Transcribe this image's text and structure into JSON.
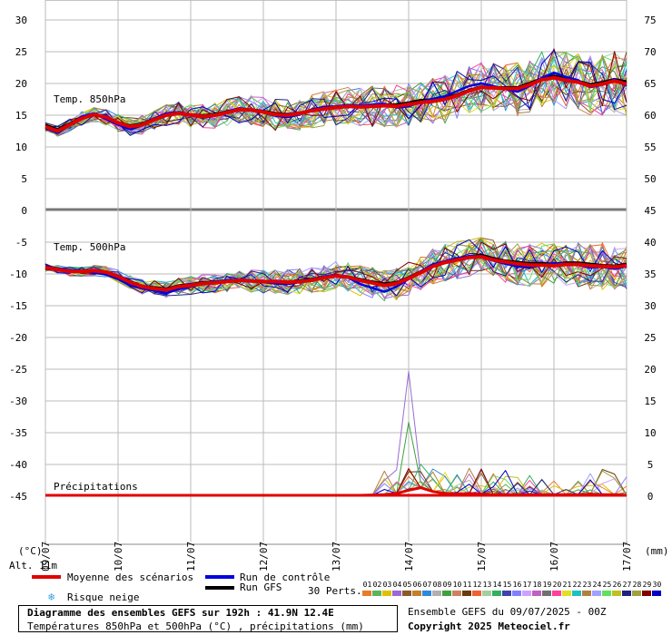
{
  "chart_data": {
    "type": "line",
    "x_dates": [
      "09/07",
      "10/07",
      "11/07",
      "12/07",
      "13/07",
      "14/07",
      "15/07",
      "16/07",
      "17/07"
    ],
    "left_axis_ticks": [
      30,
      25,
      20,
      15,
      10,
      5,
      0,
      -5,
      -10,
      -15,
      -20,
      -25,
      -30,
      -35,
      -40,
      -45
    ],
    "right_axis_ticks": [
      75,
      70,
      65,
      60,
      55,
      50,
      45,
      40,
      35,
      30,
      25,
      20,
      15,
      10,
      5,
      0
    ],
    "left_unit": "(°C)",
    "right_unit": "(mm)",
    "panels": {
      "t850": {
        "label": "Temp. 850hPa"
      },
      "t500": {
        "label": "Temp. 500hPa"
      },
      "precip": {
        "label": "Précipitations"
      }
    },
    "mean_t850": [
      13.2,
      12.5,
      13.5,
      14.5,
      15.1,
      14.7,
      13.8,
      13.2,
      13.5,
      14.3,
      15.0,
      15.3,
      15.0,
      14.8,
      15.0,
      15.4,
      15.9,
      15.8,
      15.5,
      15.1,
      15.0,
      15.3,
      15.7,
      16.0,
      16.2,
      16.4,
      16.3,
      16.4,
      16.5,
      16.4,
      16.7,
      17.0,
      17.2,
      17.5,
      18.1,
      18.8,
      19.4,
      19.3,
      19.2,
      19.2,
      19.8,
      20.6,
      20.9,
      20.5,
      20.2,
      19.6,
      19.9,
      20.4,
      19.9
    ],
    "mean_t500": [
      -9.0,
      -9.3,
      -9.6,
      -9.6,
      -9.5,
      -9.7,
      -10.4,
      -11.3,
      -12.0,
      -12.3,
      -12.5,
      -12.0,
      -11.8,
      -11.5,
      -11.4,
      -11.2,
      -11.0,
      -11.1,
      -11.2,
      -11.2,
      -11.3,
      -11.2,
      -11.0,
      -10.6,
      -10.3,
      -10.5,
      -11.0,
      -11.4,
      -11.8,
      -11.5,
      -10.7,
      -9.8,
      -8.8,
      -8.2,
      -7.8,
      -7.4,
      -7.3,
      -7.8,
      -8.1,
      -8.4,
      -8.6,
      -8.6,
      -8.7,
      -8.5,
      -8.5,
      -8.7,
      -8.8,
      -8.9,
      -8.7
    ],
    "control_t850": [
      13.0,
      12.2,
      13.4,
      14.8,
      15.3,
      14.4,
      13.5,
      12.8,
      13.4,
      14.5,
      15.3,
      15.5,
      15.1,
      14.6,
      14.9,
      15.6,
      16.1,
      15.9,
      15.4,
      14.9,
      14.7,
      15.1,
      15.9,
      16.3,
      16.4,
      16.6,
      16.5,
      16.7,
      16.8,
      16.2,
      16.4,
      17.1,
      17.6,
      18.0,
      18.8,
      19.6,
      20.0,
      19.6,
      19.1,
      18.7,
      19.6,
      20.9,
      21.7,
      21.0,
      20.5,
      19.4,
      19.8,
      20.7,
      19.6
    ],
    "control_t500": [
      -8.8,
      -9.1,
      -9.4,
      -9.5,
      -9.8,
      -10.1,
      -10.8,
      -11.8,
      -12.3,
      -12.6,
      -13.0,
      -12.4,
      -12.0,
      -11.6,
      -11.2,
      -11.0,
      -10.9,
      -11.0,
      -11.3,
      -11.5,
      -11.6,
      -11.3,
      -10.9,
      -10.4,
      -10.1,
      -10.6,
      -11.6,
      -12.2,
      -12.8,
      -12.0,
      -10.8,
      -9.6,
      -8.5,
      -8.0,
      -7.5,
      -7.2,
      -7.2,
      -7.9,
      -8.4,
      -8.8,
      -9.0,
      -8.6,
      -8.3,
      -8.4,
      -8.6,
      -9.0,
      -8.9,
      -9.2,
      -8.8
    ],
    "gfs_t850": [
      13.5,
      12.8,
      13.7,
      14.7,
      15.0,
      14.6,
      13.9,
      13.4,
      13.7,
      14.5,
      15.2,
      15.4,
      15.1,
      15.0,
      15.2,
      15.6,
      16.0,
      15.9,
      15.7,
      15.3,
      15.2,
      15.4,
      15.8,
      16.1,
      16.3,
      16.5,
      16.4,
      16.6,
      16.6,
      16.7,
      17.0,
      17.4,
      17.5,
      17.8,
      18.3,
      19.0,
      19.5,
      19.4,
      19.4,
      19.4,
      20.1,
      20.8,
      21.2,
      20.8,
      20.4,
      19.9,
      20.2,
      20.7,
      20.3
    ],
    "gfs_t500": [
      -9.2,
      -9.4,
      -9.7,
      -9.6,
      -9.4,
      -9.6,
      -10.3,
      -11.1,
      -11.9,
      -12.1,
      -12.3,
      -11.8,
      -11.6,
      -11.3,
      -11.2,
      -11.1,
      -10.9,
      -11.0,
      -11.1,
      -11.1,
      -11.2,
      -11.0,
      -10.8,
      -10.4,
      -10.2,
      -10.4,
      -10.8,
      -11.2,
      -11.5,
      -11.3,
      -10.5,
      -9.6,
      -8.7,
      -8.1,
      -7.6,
      -7.2,
      -7.0,
      -7.5,
      -7.9,
      -8.1,
      -8.3,
      -8.3,
      -8.4,
      -8.2,
      -8.2,
      -8.4,
      -8.6,
      -8.7,
      -8.4
    ],
    "mean_precip": [
      0,
      0,
      0,
      0,
      0,
      0,
      0,
      0,
      0,
      0,
      0,
      0,
      0,
      0,
      0,
      0,
      0,
      0,
      0,
      0,
      0,
      0,
      0,
      0,
      0,
      0,
      0,
      0.05,
      0.1,
      0.3,
      0.8,
      1.2,
      0.6,
      0.3,
      0.2,
      0.3,
      0.2,
      0.1,
      0.1,
      0.1,
      0.1,
      0.1,
      0.1,
      0.1,
      0.1,
      0.2,
      0.1,
      0.1,
      0.0
    ],
    "spike_precip": {
      "member": "04",
      "index": 30,
      "peak_mm": 19.5,
      "second_peak_mm": 11.5
    },
    "legend": {
      "mean": "Moyenne des scénarios",
      "control": "Run de contrôle",
      "gfs": "Run GFS",
      "snow": "Risque neige",
      "perts": "30 Perts."
    },
    "alt_label": "Alt. 11m",
    "pert_numbers": [
      "01",
      "02",
      "03",
      "04",
      "05",
      "06",
      "07",
      "08",
      "09",
      "10",
      "11",
      "12",
      "13",
      "14",
      "15",
      "16",
      "17",
      "18",
      "19",
      "20",
      "21",
      "22",
      "23",
      "24",
      "25",
      "26",
      "27",
      "28",
      "29",
      "30"
    ],
    "pert_colors": [
      "#e87b2a",
      "#5ab55a",
      "#e0c000",
      "#9a6ad6",
      "#8a5a2a",
      "#c08030",
      "#2a8ae0",
      "#b0b0b0",
      "#40a040",
      "#d08060",
      "#6a3a10",
      "#f06030",
      "#a0d0a0",
      "#30b060",
      "#4040b0",
      "#8080ff",
      "#d0a0ff",
      "#c060c0",
      "#707070",
      "#ff40a0",
      "#e0e020",
      "#20c0c0",
      "#b08040",
      "#a0a0ff",
      "#60e060",
      "#c0c020",
      "#202080",
      "#a0a040",
      "#800000",
      "#0000c0"
    ],
    "ensemble_label": "Ensemble GEFS du 09/07/2025 - 00Z",
    "copyright": "Copyright 2025 Meteociel.fr",
    "title": "Diagramme des ensembles GEFS sur 192h : 41.9N 12.4E",
    "subtitle": "Températures 850hPa et 500hPa (°C) , précipitations (mm)"
  }
}
